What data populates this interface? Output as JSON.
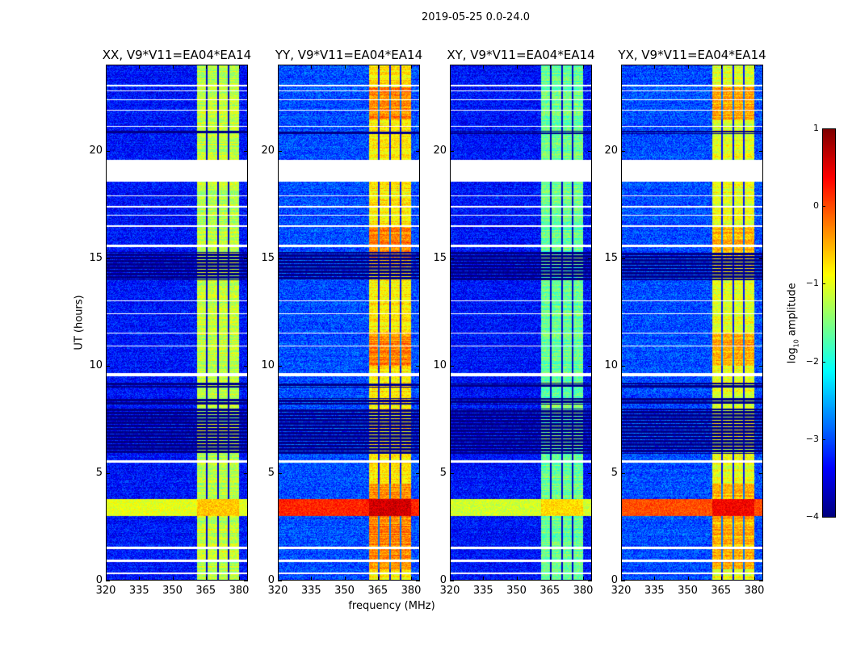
{
  "suptitle": "2019-05-25 0.0-24.0",
  "chart_data": {
    "type": "heatmap",
    "xlabel": "frequency (MHz)",
    "ylabel": "UT (hours)",
    "xlim": [
      320,
      384
    ],
    "ylim": [
      0,
      24
    ],
    "xticks": [
      "320",
      "335",
      "350",
      "365",
      "380"
    ],
    "xtick_values": [
      320,
      335,
      350,
      365,
      380
    ],
    "yticks": [
      "0",
      "5",
      "10",
      "15",
      "20"
    ],
    "ytick_values": [
      0,
      5,
      10,
      15,
      20
    ],
    "colorbar": {
      "label_main": "log",
      "label_sub": "10",
      "label_rest": " amplitude",
      "range": [
        -4,
        1
      ],
      "ticks": [
        "1",
        "0",
        "−1",
        "−2",
        "−3",
        "−4"
      ],
      "tick_values": [
        1,
        0,
        -1,
        -2,
        -3,
        -4
      ],
      "colormap": "jet"
    },
    "panels": [
      {
        "title": "XX, V9*V11=EA04*EA14",
        "background_level": -3.3,
        "band_level": -1.2,
        "rfi_level": -1.0
      },
      {
        "title": "YY, V9*V11=EA04*EA14",
        "background_level": -3.0,
        "band_level": -0.8,
        "rfi_level": 0.2
      },
      {
        "title": "XY, V9*V11=EA04*EA14",
        "background_level": -3.3,
        "band_level": -1.6,
        "rfi_level": -1.1
      },
      {
        "title": "YX, V9*V11=EA04*EA14",
        "background_level": -3.0,
        "band_level": -1.0,
        "rfi_level": 0.0
      }
    ],
    "signal_band_mhz": [
      361,
      380
    ],
    "band_gaps_mhz": [
      365.5,
      370.5,
      375.5
    ],
    "rfi_hours": [
      3.0,
      3.8
    ],
    "flagged_hours": [
      [
        18.6,
        19.6
      ],
      [
        0.3,
        0.35
      ],
      [
        0.85,
        0.95
      ],
      [
        1.45,
        1.55
      ],
      [
        5.5,
        5.6
      ],
      [
        9.5,
        9.65
      ],
      [
        10.9,
        10.95
      ],
      [
        11.5,
        11.55
      ],
      [
        12.4,
        12.45
      ],
      [
        13.0,
        13.05
      ],
      [
        15.55,
        15.65
      ],
      [
        16.5,
        16.55
      ],
      [
        17.0,
        17.05
      ],
      [
        17.4,
        17.45
      ],
      [
        17.9,
        17.95
      ],
      [
        21.15,
        21.2
      ],
      [
        21.9,
        21.95
      ],
      [
        22.4,
        22.45
      ],
      [
        22.8,
        22.85
      ],
      [
        23.05,
        23.1
      ]
    ],
    "zero_hours": [
      [
        20.8,
        20.95
      ],
      [
        14.0,
        15.3
      ],
      [
        5.9,
        8.0
      ],
      [
        8.2,
        8.5
      ],
      [
        9.0,
        9.2
      ]
    ]
  }
}
